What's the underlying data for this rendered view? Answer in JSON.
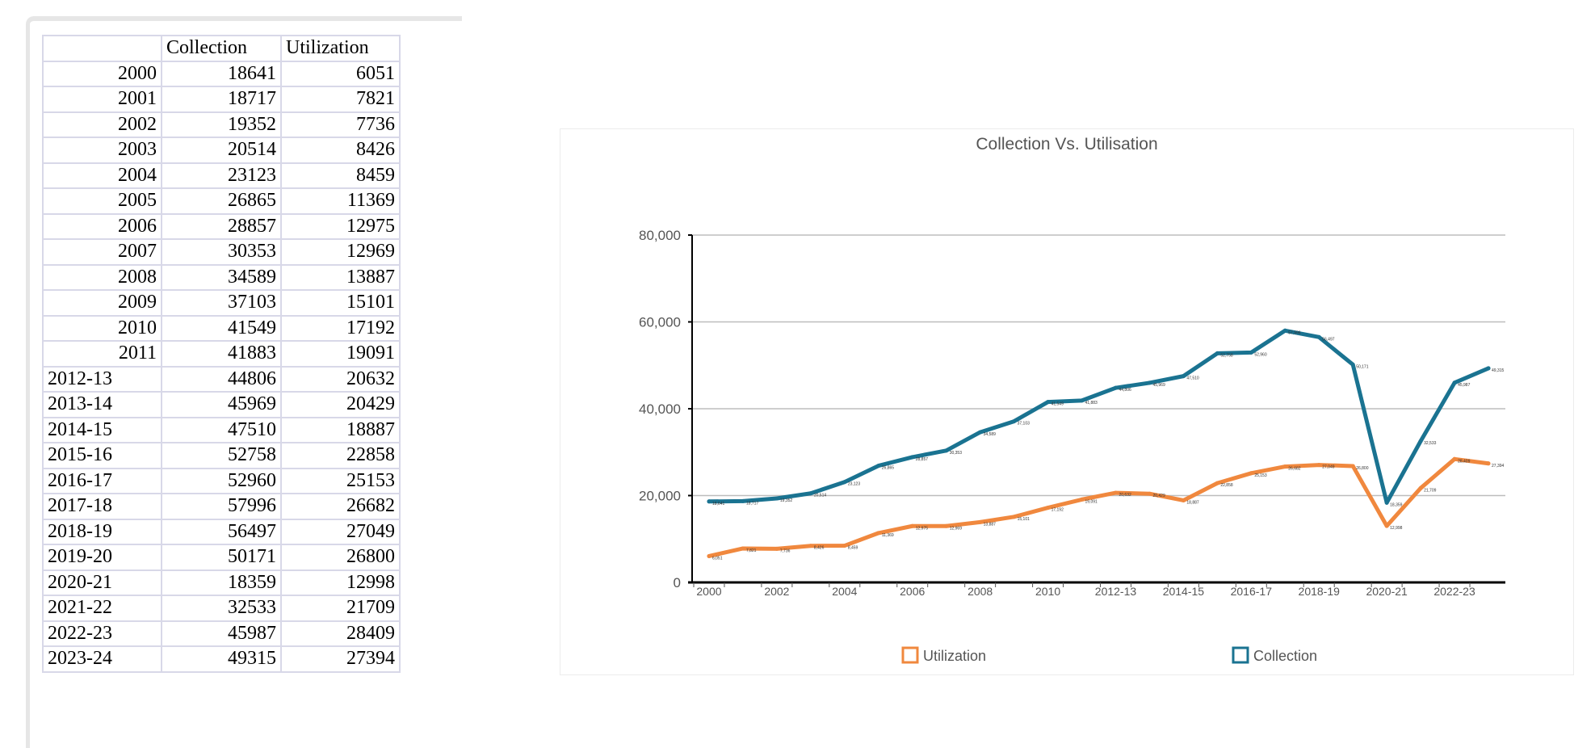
{
  "table": {
    "headers": [
      "",
      "Collection",
      "Utilization"
    ],
    "rows": [
      [
        "2000",
        "18641",
        "6051"
      ],
      [
        "2001",
        "18717",
        "7821"
      ],
      [
        "2002",
        "19352",
        "7736"
      ],
      [
        "2003",
        "20514",
        "8426"
      ],
      [
        "2004",
        "23123",
        "8459"
      ],
      [
        "2005",
        "26865",
        "11369"
      ],
      [
        "2006",
        "28857",
        "12975"
      ],
      [
        "2007",
        "30353",
        "12969"
      ],
      [
        "2008",
        "34589",
        "13887"
      ],
      [
        "2009",
        "37103",
        "15101"
      ],
      [
        "2010",
        "41549",
        "17192"
      ],
      [
        "2011",
        "41883",
        "19091"
      ],
      [
        "2012-13",
        "44806",
        "20632"
      ],
      [
        "2013-14",
        "45969",
        "20429"
      ],
      [
        "2014-15",
        "47510",
        "18887"
      ],
      [
        "2015-16",
        "52758",
        "22858"
      ],
      [
        "2016-17",
        "52960",
        "25153"
      ],
      [
        "2017-18",
        "57996",
        "26682"
      ],
      [
        "2018-19",
        "56497",
        "27049"
      ],
      [
        "2019-20",
        "50171",
        "26800"
      ],
      [
        "2020-21",
        "18359",
        "12998"
      ],
      [
        "2021-22",
        "32533",
        "21709"
      ],
      [
        "2022-23",
        "45987",
        "28409"
      ],
      [
        "2023-24",
        "49315",
        "27394"
      ]
    ]
  },
  "chart_data": {
    "type": "line",
    "title": "Collection Vs. Utilisation",
    "xlabel": "",
    "ylabel": "",
    "x": [
      "2000",
      "2001",
      "2002",
      "2003",
      "2004",
      "2005",
      "2006",
      "2007",
      "2008",
      "2009",
      "2010",
      "2011",
      "2012-13",
      "2013-14",
      "2014-15",
      "2015-16",
      "2016-17",
      "2017-18",
      "2018-19",
      "2019-20",
      "2020-21",
      "2021-22",
      "2022-23",
      "2023-24"
    ],
    "x_tick_labels": [
      "2000",
      "2002",
      "2004",
      "2006",
      "2008",
      "2010",
      "2012-13",
      "2014-15",
      "2016-17",
      "2018-19",
      "2020-21",
      "2022-23"
    ],
    "y_tick_labels": [
      "0",
      "20,000",
      "40,000",
      "60,000",
      "80,000"
    ],
    "ylim": [
      0,
      80000
    ],
    "grid": true,
    "legend_position": "bottom",
    "series": [
      {
        "name": "Utilization",
        "color": "#f0883e",
        "values": [
          6051,
          7821,
          7736,
          8426,
          8459,
          11369,
          12975,
          12969,
          13887,
          15101,
          17192,
          19091,
          20632,
          20429,
          18887,
          22858,
          25153,
          26682,
          27049,
          26800,
          12998,
          21709,
          28409,
          27394
        ],
        "labels": [
          "6,051",
          "7,821",
          "7,736",
          "8,426",
          "8,459",
          "11,369",
          "12,975",
          "12,969",
          "13,887",
          "15,101",
          "17,192",
          "19,091",
          "20,632",
          "20,429",
          "18,887",
          "22,858",
          "25,153",
          "26,682",
          "27,049",
          "26,800",
          "12,998",
          "21,709",
          "28,409",
          "27,394"
        ]
      },
      {
        "name": "Collection",
        "color": "#1a7391",
        "values": [
          18641,
          18717,
          19352,
          20514,
          23123,
          26865,
          28857,
          30353,
          34589,
          37103,
          41549,
          41883,
          44806,
          45969,
          47510,
          52758,
          52960,
          57996,
          56497,
          50171,
          18359,
          32533,
          45987,
          49315
        ],
        "labels": [
          "18,641",
          "18,717",
          "19,352",
          "20,514",
          "23,123",
          "26,865",
          "28,857",
          "30,353",
          "34,589",
          "37,103",
          "41,549",
          "41,883",
          "44,806",
          "45,969",
          "47,510",
          "52,758",
          "52,960",
          "57,996",
          "56,497",
          "50,171",
          "18,359",
          "32,533",
          "45,987",
          "49,315"
        ]
      }
    ]
  }
}
